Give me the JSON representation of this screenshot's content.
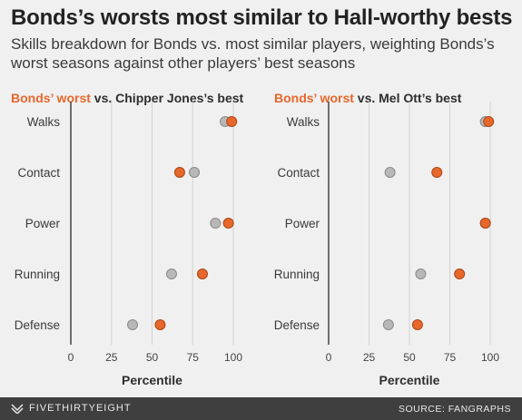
{
  "header": {
    "title": "Bonds’s worsts most similar to Hall-worthy bests",
    "subtitle": "Skills breakdown for Bonds vs. most similar players, weighting Bonds’s worst seasons against other players’ best seasons"
  },
  "footer": {
    "brand": "FIVETHIRTYEIGHT",
    "brand_icon": "fivethirtyeight-logo-icon",
    "source": "SOURCE: FANGRAPHS"
  },
  "colors": {
    "bonds": "#e8672b",
    "other": "#b8b8b8",
    "grid": "#d2d2d2",
    "axis": "#444444"
  },
  "chart_data": [
    {
      "type": "scatter",
      "title_highlight": "Bonds’ worst",
      "title_rest": " vs. Chipper Jones’s best",
      "categories": [
        "Walks",
        "Contact",
        "Power",
        "Running",
        "Defense"
      ],
      "series": [
        {
          "name": "Bonds’ worst",
          "values": [
            99,
            67,
            97,
            81,
            55
          ]
        },
        {
          "name": "Chipper Jones’s best",
          "values": [
            95,
            76,
            89,
            62,
            38
          ]
        }
      ],
      "xlabel": "Percentile",
      "xlim": [
        0,
        100
      ],
      "xticks": [
        0,
        25,
        50,
        75,
        100
      ]
    },
    {
      "type": "scatter",
      "title_highlight": "Bonds’ worst",
      "title_rest": " vs. Mel Ott’s best",
      "categories": [
        "Walks",
        "Contact",
        "Power",
        "Running",
        "Defense"
      ],
      "series": [
        {
          "name": "Bonds’ worst",
          "values": [
            99,
            67,
            97,
            81,
            55
          ]
        },
        {
          "name": "Mel Ott’s best",
          "values": [
            97,
            38,
            97,
            57,
            37
          ]
        }
      ],
      "xlabel": "Percentile",
      "xlim": [
        0,
        100
      ],
      "xticks": [
        0,
        25,
        50,
        75,
        100
      ]
    }
  ]
}
